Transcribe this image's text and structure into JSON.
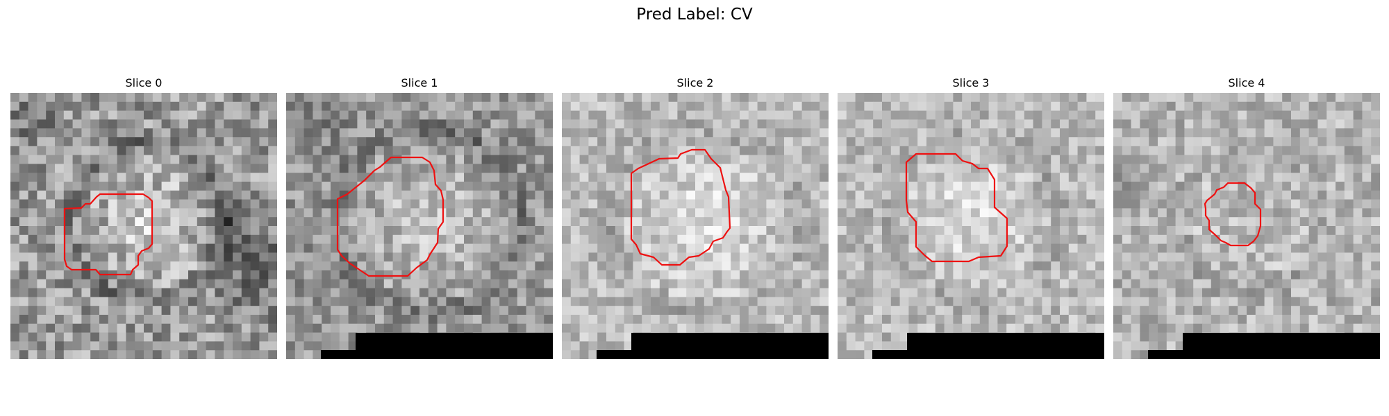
{
  "figure": {
    "title": "Pred Label: CV"
  },
  "panels": [
    {
      "title": "Slice 0",
      "mask": "none"
    },
    {
      "title": "Slice 1",
      "mask": "bottom-black"
    },
    {
      "title": "Slice 2",
      "mask": "bottom-black"
    },
    {
      "title": "Slice 3",
      "mask": "bottom-black"
    },
    {
      "title": "Slice 4",
      "mask": "bottom-black"
    }
  ],
  "colors": {
    "contour": "#ee1111",
    "mask": "#000000"
  }
}
